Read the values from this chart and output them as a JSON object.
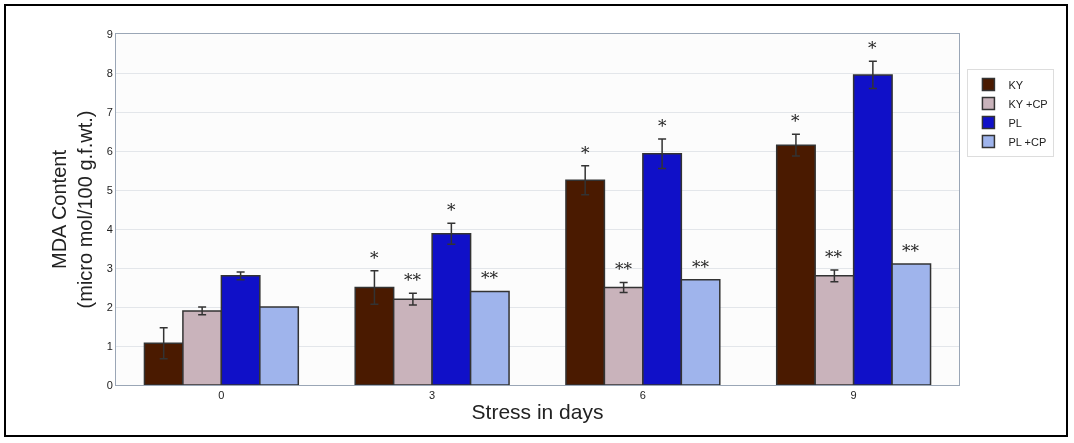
{
  "chart_data": {
    "type": "bar",
    "xlabel": "Stress in days",
    "ylabel": "MDA Content\n(micro mol/100 g.f.wt.)",
    "categories": [
      "0",
      "3",
      "6",
      "9"
    ],
    "series": [
      {
        "name": "KY",
        "color": "#4a1a00",
        "values": [
          1.07,
          2.5,
          5.25,
          6.15
        ],
        "errors": [
          0.4,
          0.43,
          0.37,
          0.28
        ],
        "value_labels": [
          null,
          "*",
          "*",
          "*"
        ]
      },
      {
        "name": "KY +CP",
        "color": "#c9b3bb",
        "values": [
          1.9,
          2.2,
          2.5,
          2.8
        ],
        "errors": [
          0.1,
          0.15,
          0.13,
          0.15
        ],
        "value_labels": [
          null,
          "**",
          "**",
          "**"
        ]
      },
      {
        "name": "PL",
        "color": "#1010c8",
        "values": [
          2.8,
          3.88,
          5.93,
          7.95
        ],
        "errors": [
          0.1,
          0.27,
          0.38,
          0.35
        ],
        "value_labels": [
          null,
          "*",
          "*",
          "*"
        ]
      },
      {
        "name": "PL +CP",
        "color": "#9fb4ec",
        "values": [
          2.0,
          2.4,
          2.7,
          3.1
        ],
        "errors": [
          null,
          null,
          null,
          null
        ],
        "value_labels": [
          null,
          "**",
          "**",
          "**"
        ]
      }
    ],
    "ylim": [
      0,
      9
    ],
    "yticks": [
      0,
      1,
      2,
      3,
      4,
      5,
      6,
      7,
      8,
      9
    ],
    "grid": "y",
    "legend": "top right"
  }
}
